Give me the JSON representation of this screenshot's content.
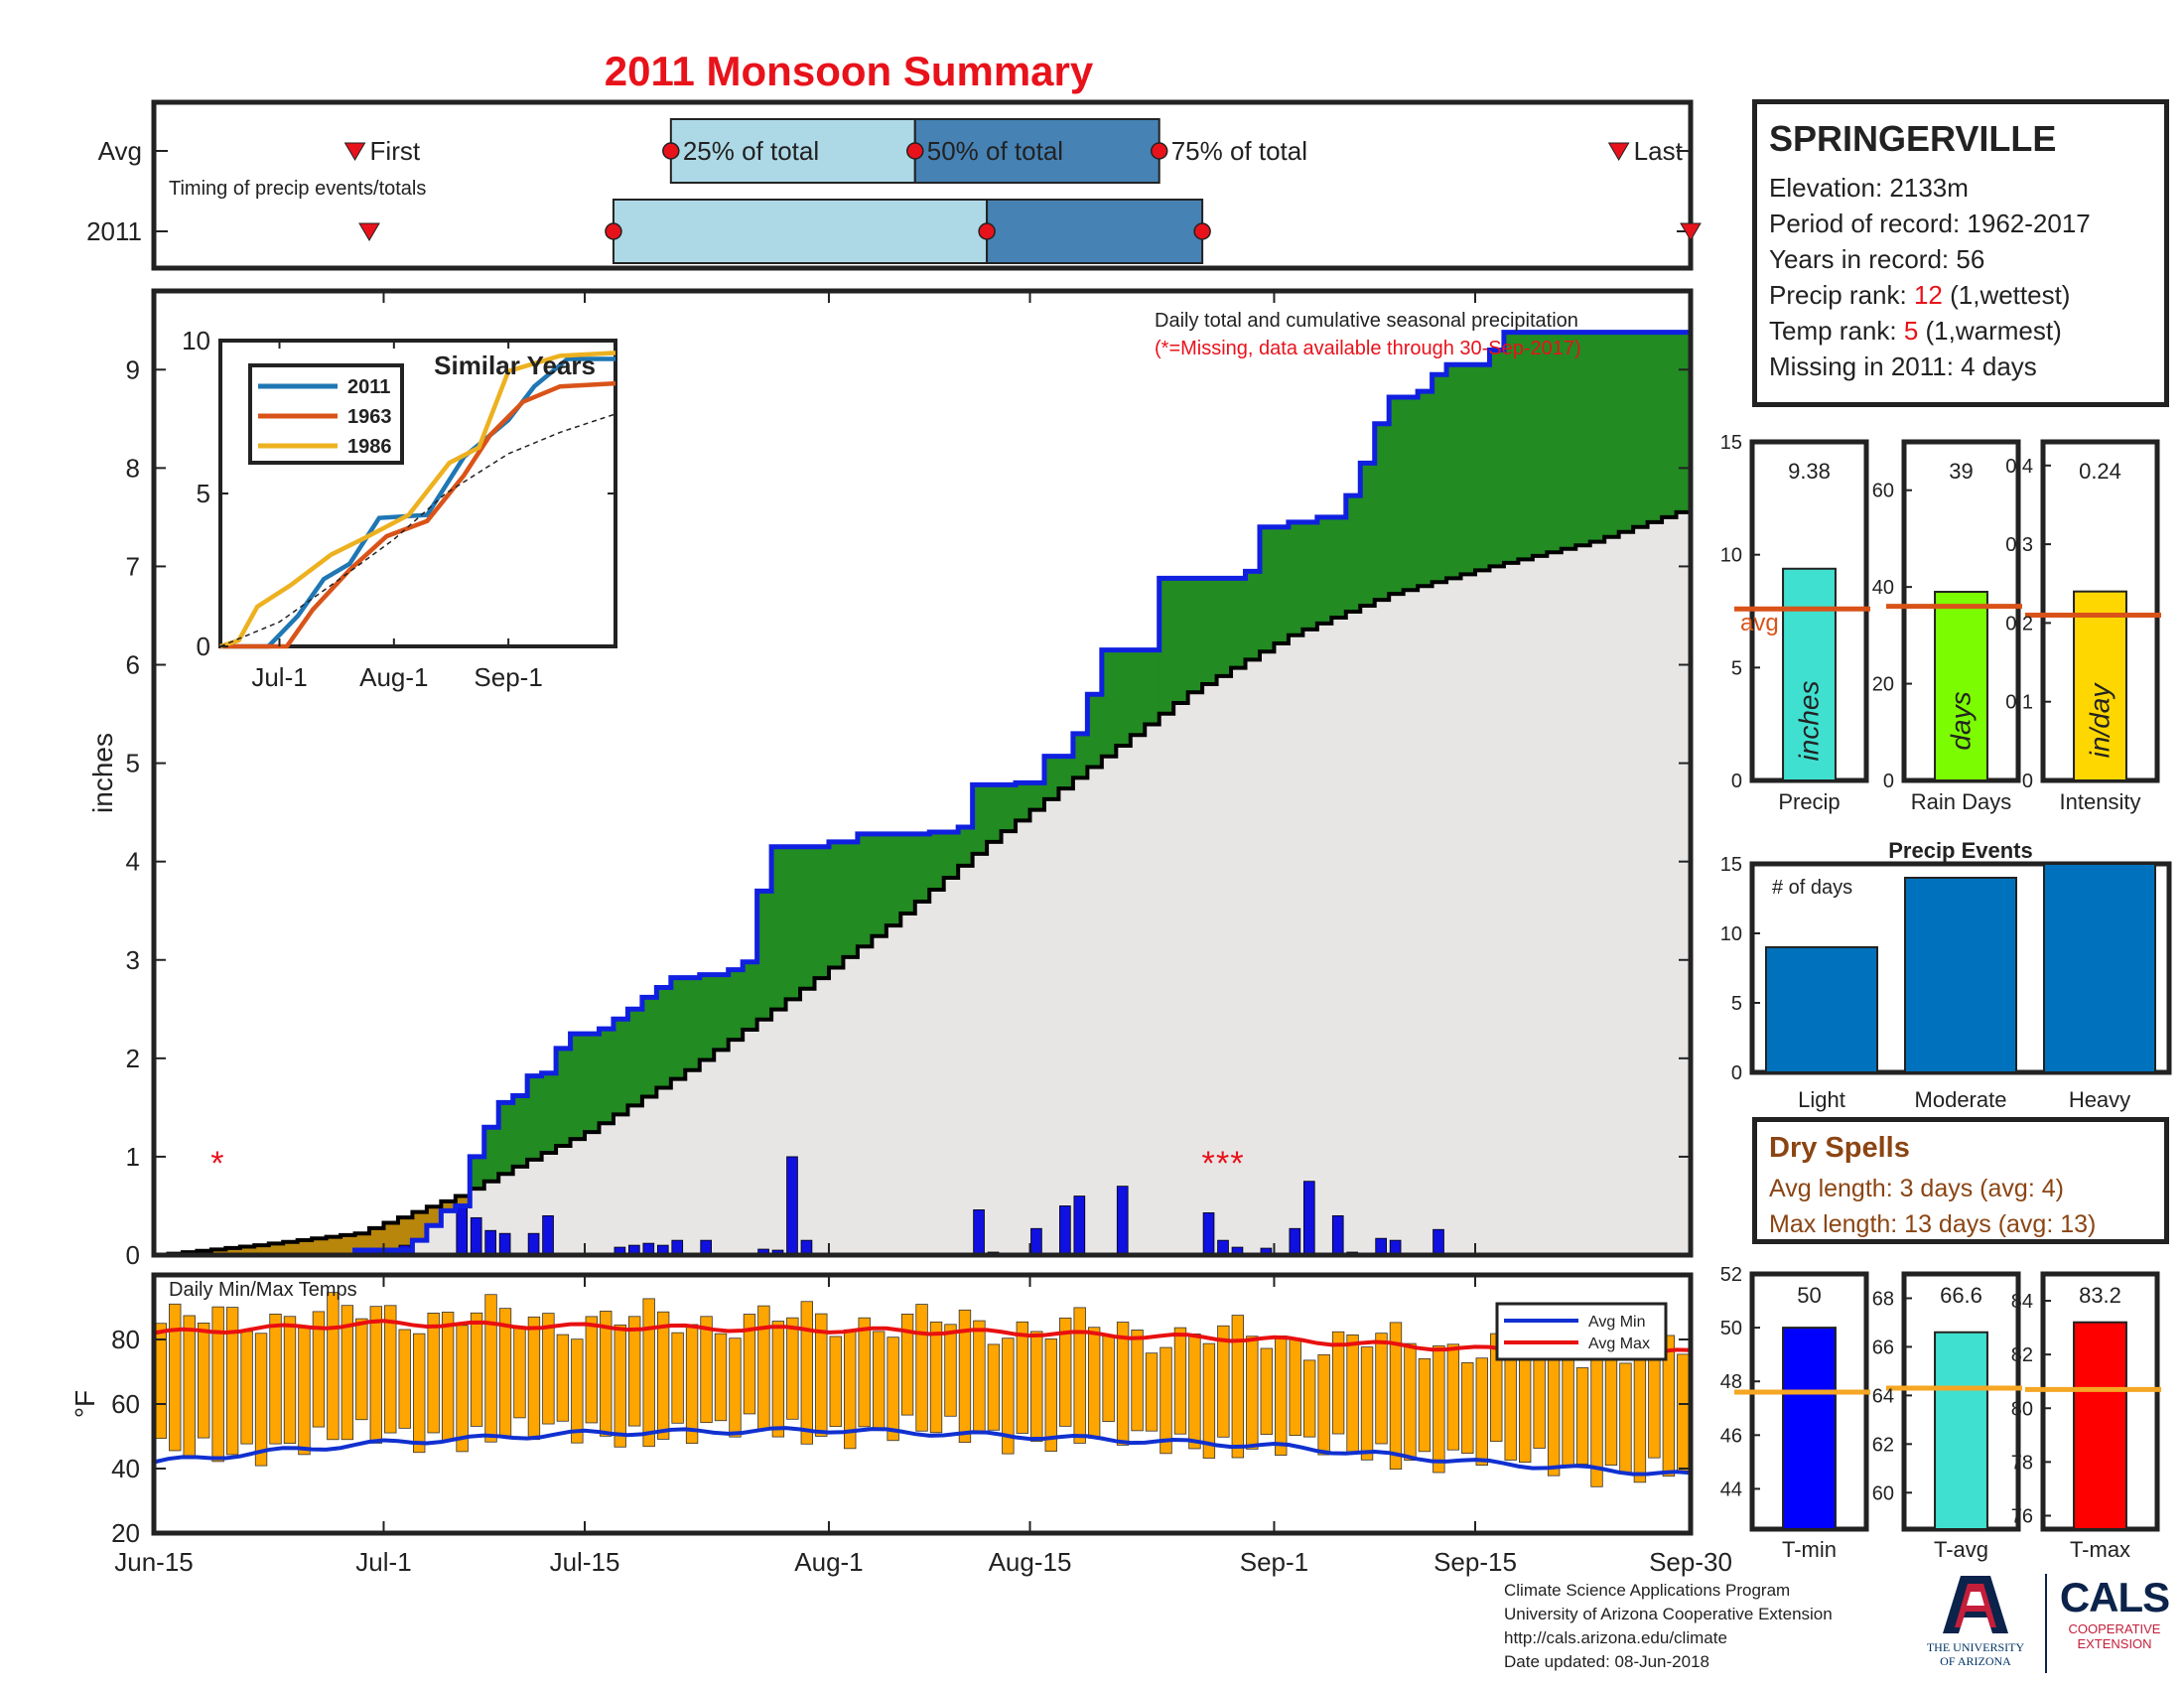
{
  "title": "2011 Monsoon Summary",
  "station": {
    "name": "SPRINGERVILLE",
    "elevation_label": "Elevation: 2133m",
    "period_label": "Period of record: 1962-2017",
    "years_label": "Years in record: 56",
    "precip_rank_prefix": "Precip rank: ",
    "precip_rank_value": "12",
    "precip_rank_suffix": " (1,wettest)",
    "temp_rank_prefix": "Temp rank: ",
    "temp_rank_value": "5",
    "temp_rank_suffix": " (1,warmest)",
    "missing_label": "Missing in 2011: 4 days"
  },
  "dry_spells": {
    "title": "Dry Spells",
    "avg_length": "Avg length: 3 days (avg: 4)",
    "max_length": "Max length: 13 days (avg: 13)"
  },
  "credits": {
    "line1": "Climate Science Applications Program",
    "line2": "University of Arizona Cooperative Extension",
    "line3": "http://cals.arizona.edu/climate",
    "line4": "Date updated: 08-Jun-2018"
  },
  "logos": {
    "ua_line1": "THE UNIVERSITY",
    "ua_line2": "OF ARIZONA",
    "cals_word": "CALS",
    "cals_sub1": "COOPERATIVE",
    "cals_sub2": "EXTENSION"
  },
  "colors": {
    "title_red": "#e8121b",
    "cumulative_2011": "#1020e0",
    "above_avg_fill": "#228b22",
    "below_avg_fill": "#b8860b",
    "avg_fill": "#e8e6e5",
    "daily_bar": "#1010e0",
    "temp_bar": "#ffa500",
    "avg_min_line": "#1030d0",
    "avg_max_line": "#e81010"
  },
  "chart_data": [
    {
      "id": "timing",
      "type": "timeline",
      "title": "Timing of precip events/totals",
      "rows": [
        "Avg",
        "2011"
      ],
      "labels": {
        "first": "First",
        "q25": "25% of total",
        "q50": "50% of total",
        "q75": "75% of total",
        "last": "Last"
      },
      "avg": {
        "first": "2011-06-29",
        "q25": "2011-07-21",
        "q50": "2011-08-07",
        "q75": "2011-08-24",
        "last": "2011-09-25"
      },
      "y2011": {
        "first": "2011-06-30",
        "q25": "2011-07-17",
        "q50": "2011-08-12",
        "q75": "2011-08-27",
        "last": "2011-09-30"
      }
    },
    {
      "id": "precip",
      "type": "area",
      "title": "Daily total and cumulative seasonal precipitation",
      "note": "(*=Missing, data available through 30-Sep-2017)",
      "ylabel": "inches",
      "ylim": [
        0,
        9.8
      ],
      "yticks": [
        0,
        1,
        2,
        3,
        4,
        5,
        6,
        7,
        8,
        9
      ],
      "xticks": [
        {
          "date": "2011-06-15",
          "label": "Jun-15"
        },
        {
          "date": "2011-07-01",
          "label": "Jul-1"
        },
        {
          "date": "2011-07-15",
          "label": "Jul-15"
        },
        {
          "date": "2011-08-01",
          "label": "Aug-1"
        },
        {
          "date": "2011-08-15",
          "label": "Aug-15"
        },
        {
          "date": "2011-09-01",
          "label": "Sep-1"
        },
        {
          "date": "2011-09-15",
          "label": "Sep-15"
        },
        {
          "date": "2011-09-30",
          "label": "Sep-30"
        }
      ],
      "cumulative_2011": [
        [
          "2011-06-15",
          0
        ],
        [
          "2011-06-28",
          0
        ],
        [
          "2011-06-29",
          0.05
        ],
        [
          "2011-07-03",
          0.15
        ],
        [
          "2011-07-04",
          0.3
        ],
        [
          "2011-07-05",
          0.45
        ],
        [
          "2011-07-06",
          0.5
        ],
        [
          "2011-07-07",
          1.0
        ],
        [
          "2011-07-08",
          1.3
        ],
        [
          "2011-07-09",
          1.55
        ],
        [
          "2011-07-10",
          1.62
        ],
        [
          "2011-07-11",
          1.82
        ],
        [
          "2011-07-12",
          1.85
        ],
        [
          "2011-07-13",
          2.1
        ],
        [
          "2011-07-14",
          2.25
        ],
        [
          "2011-07-16",
          2.3
        ],
        [
          "2011-07-17",
          2.4
        ],
        [
          "2011-07-18",
          2.5
        ],
        [
          "2011-07-19",
          2.62
        ],
        [
          "2011-07-20",
          2.72
        ],
        [
          "2011-07-21",
          2.82
        ],
        [
          "2011-07-23",
          2.85
        ],
        [
          "2011-07-25",
          2.9
        ],
        [
          "2011-07-26",
          2.98
        ],
        [
          "2011-07-27",
          3.7
        ],
        [
          "2011-07-28",
          4.15
        ],
        [
          "2011-08-01",
          4.2
        ],
        [
          "2011-08-03",
          4.28
        ],
        [
          "2011-08-08",
          4.3
        ],
        [
          "2011-08-10",
          4.35
        ],
        [
          "2011-08-11",
          4.78
        ],
        [
          "2011-08-14",
          4.8
        ],
        [
          "2011-08-15",
          4.8
        ],
        [
          "2011-08-16",
          5.07
        ],
        [
          "2011-08-18",
          5.3
        ],
        [
          "2011-08-19",
          5.7
        ],
        [
          "2011-08-20",
          6.15
        ],
        [
          "2011-08-24",
          6.88
        ],
        [
          "2011-08-30",
          6.95
        ],
        [
          "2011-08-31",
          7.4
        ],
        [
          "2011-09-02",
          7.45
        ],
        [
          "2011-09-04",
          7.5
        ],
        [
          "2011-09-06",
          7.72
        ],
        [
          "2011-09-07",
          8.05
        ],
        [
          "2011-09-08",
          8.45
        ],
        [
          "2011-09-09",
          8.72
        ],
        [
          "2011-09-11",
          8.78
        ],
        [
          "2011-09-12",
          8.95
        ],
        [
          "2011-09-13",
          9.05
        ],
        [
          "2011-09-16",
          9.2
        ],
        [
          "2011-09-17",
          9.38
        ],
        [
          "2011-09-30",
          9.38
        ]
      ],
      "average_cumulative": [
        [
          "2011-06-15",
          0
        ],
        [
          "2011-06-22",
          0.1
        ],
        [
          "2011-06-29",
          0.22
        ],
        [
          "2011-07-06",
          0.6
        ],
        [
          "2011-07-10",
          0.9
        ],
        [
          "2011-07-15",
          1.25
        ],
        [
          "2011-07-22",
          1.88
        ],
        [
          "2011-07-29",
          2.6
        ],
        [
          "2011-08-05",
          3.35
        ],
        [
          "2011-08-12",
          4.2
        ],
        [
          "2011-08-19",
          4.96
        ],
        [
          "2011-08-26",
          5.72
        ],
        [
          "2011-09-02",
          6.3
        ],
        [
          "2011-09-09",
          6.72
        ],
        [
          "2011-09-16",
          7.0
        ],
        [
          "2011-09-23",
          7.25
        ],
        [
          "2011-09-30",
          7.6
        ]
      ],
      "daily_precip": [
        [
          "2011-06-29",
          0.03
        ],
        [
          "2011-07-02",
          0.1
        ],
        [
          "2011-07-06",
          0.5
        ],
        [
          "2011-07-07",
          0.38
        ],
        [
          "2011-07-08",
          0.25
        ],
        [
          "2011-07-09",
          0.22
        ],
        [
          "2011-07-11",
          0.22
        ],
        [
          "2011-07-12",
          0.4
        ],
        [
          "2011-07-17",
          0.08
        ],
        [
          "2011-07-18",
          0.1
        ],
        [
          "2011-07-19",
          0.12
        ],
        [
          "2011-07-20",
          0.1
        ],
        [
          "2011-07-21",
          0.15
        ],
        [
          "2011-07-23",
          0.15
        ],
        [
          "2011-07-27",
          0.06
        ],
        [
          "2011-07-28",
          0.05
        ],
        [
          "2011-07-29",
          1.0
        ],
        [
          "2011-07-30",
          0.15
        ],
        [
          "2011-08-06",
          0.02
        ],
        [
          "2011-08-11",
          0.46
        ],
        [
          "2011-08-12",
          0.03
        ],
        [
          "2011-08-15",
          0.27
        ],
        [
          "2011-08-17",
          0.5
        ],
        [
          "2011-08-18",
          0.6
        ],
        [
          "2011-08-21",
          0.7
        ],
        [
          "2011-08-27",
          0.43
        ],
        [
          "2011-08-28",
          0.15
        ],
        [
          "2011-08-29",
          0.08
        ],
        [
          "2011-08-31",
          0.07
        ],
        [
          "2011-09-02",
          0.27
        ],
        [
          "2011-09-03",
          0.75
        ],
        [
          "2011-09-05",
          0.4
        ],
        [
          "2011-09-06",
          0.03
        ],
        [
          "2011-09-08",
          0.17
        ],
        [
          "2011-09-09",
          0.15
        ],
        [
          "2011-09-12",
          0.26
        ]
      ],
      "missing_days": [
        "2011-06-19",
        "2011-08-27",
        "2011-08-28",
        "2011-08-29"
      ],
      "missing_label": "*",
      "missing_y": 1.0
    },
    {
      "id": "similar",
      "type": "line",
      "title": "Similar Years",
      "ylim": [
        0,
        10
      ],
      "yticks": [
        0,
        5,
        10
      ],
      "xticks": [
        {
          "date": "2011-07-01",
          "label": "Jul-1"
        },
        {
          "date": "2011-08-01",
          "label": "Aug-1"
        },
        {
          "date": "2011-09-01",
          "label": "Sep-1"
        }
      ],
      "series": [
        {
          "name": "2011",
          "color": "#1f77b4",
          "values": [
            [
              "2011-06-15",
              0
            ],
            [
              "2011-06-28",
              0
            ],
            [
              "2011-07-06",
              1.0
            ],
            [
              "2011-07-13",
              2.2
            ],
            [
              "2011-07-20",
              2.7
            ],
            [
              "2011-07-28",
              4.2
            ],
            [
              "2011-08-10",
              4.3
            ],
            [
              "2011-08-20",
              6.2
            ],
            [
              "2011-09-01",
              7.4
            ],
            [
              "2011-09-08",
              8.5
            ],
            [
              "2011-09-17",
              9.4
            ],
            [
              "2011-09-30",
              9.4
            ]
          ]
        },
        {
          "name": "1963",
          "color": "#d95319",
          "values": [
            [
              "2011-06-15",
              0
            ],
            [
              "2011-07-03",
              0
            ],
            [
              "2011-07-10",
              1.2
            ],
            [
              "2011-07-20",
              2.5
            ],
            [
              "2011-07-30",
              3.6
            ],
            [
              "2011-08-10",
              4.1
            ],
            [
              "2011-08-20",
              5.6
            ],
            [
              "2011-08-27",
              6.9
            ],
            [
              "2011-09-05",
              8.0
            ],
            [
              "2011-09-15",
              8.5
            ],
            [
              "2011-09-30",
              8.6
            ]
          ]
        },
        {
          "name": "1986",
          "color": "#edb120",
          "values": [
            [
              "2011-06-15",
              0
            ],
            [
              "2011-06-20",
              0.2
            ],
            [
              "2011-06-25",
              1.3
            ],
            [
              "2011-07-04",
              2.0
            ],
            [
              "2011-07-15",
              3.0
            ],
            [
              "2011-07-25",
              3.6
            ],
            [
              "2011-08-05",
              4.3
            ],
            [
              "2011-08-16",
              6.0
            ],
            [
              "2011-08-24",
              6.5
            ],
            [
              "2011-09-01",
              9.0
            ],
            [
              "2011-09-15",
              9.5
            ],
            [
              "2011-09-30",
              9.6
            ]
          ]
        },
        {
          "name": "",
          "color": "#222222",
          "dashed": true,
          "values": [
            [
              "2011-06-15",
              0
            ],
            [
              "2011-07-01",
              0.8
            ],
            [
              "2011-07-15",
              2.0
            ],
            [
              "2011-08-01",
              3.5
            ],
            [
              "2011-08-15",
              5.0
            ],
            [
              "2011-09-01",
              6.3
            ],
            [
              "2011-09-15",
              7.0
            ],
            [
              "2011-09-30",
              7.6
            ]
          ]
        }
      ]
    },
    {
      "id": "temps",
      "type": "bar",
      "title": "Daily Min/Max Temps",
      "ylabel": "°F",
      "ylim": [
        20,
        100
      ],
      "yticks": [
        20,
        40,
        60,
        80
      ],
      "legend": [
        "Avg Min",
        "Avg Max"
      ],
      "legend_position": "top-right",
      "avg_max": [
        [
          "2011-06-15",
          82
        ],
        [
          "2011-07-01",
          85
        ],
        [
          "2011-07-15",
          84
        ],
        [
          "2011-08-01",
          83
        ],
        [
          "2011-08-15",
          82
        ],
        [
          "2011-09-01",
          80
        ],
        [
          "2011-09-15",
          77
        ],
        [
          "2011-09-30",
          76
        ]
      ],
      "avg_min": [
        [
          "2011-06-15",
          42
        ],
        [
          "2011-06-25",
          46
        ],
        [
          "2011-07-01",
          48
        ],
        [
          "2011-07-15",
          51
        ],
        [
          "2011-08-01",
          52
        ],
        [
          "2011-08-15",
          50
        ],
        [
          "2011-09-01",
          47
        ],
        [
          "2011-09-15",
          42
        ],
        [
          "2011-09-30",
          38
        ]
      ],
      "daily_max_keypoints": [
        [
          "2011-06-15",
          85
        ],
        [
          "2011-06-25",
          88
        ],
        [
          "2011-07-01",
          88
        ],
        [
          "2011-07-15",
          86
        ],
        [
          "2011-08-01",
          86
        ],
        [
          "2011-08-15",
          84
        ],
        [
          "2011-09-01",
          80
        ],
        [
          "2011-09-15",
          78
        ],
        [
          "2011-09-30",
          76
        ]
      ],
      "daily_min_keypoints": [
        [
          "2011-06-15",
          44
        ],
        [
          "2011-06-25",
          48
        ],
        [
          "2011-07-01",
          50
        ],
        [
          "2011-07-15",
          51
        ],
        [
          "2011-08-01",
          52
        ],
        [
          "2011-08-15",
          50
        ],
        [
          "2011-09-01",
          47
        ],
        [
          "2011-09-15",
          43
        ],
        [
          "2011-09-30",
          38
        ]
      ]
    },
    {
      "id": "season_stats",
      "type": "bar",
      "panels": [
        {
          "key": "precip",
          "category": "Precip",
          "unit": "inches",
          "value": 9.38,
          "label": "9.38",
          "avg": 7.6,
          "avg_label": "avg",
          "ylim": [
            0,
            15
          ],
          "yticks": [
            0,
            5,
            10,
            15
          ],
          "color": "#40e0d0"
        },
        {
          "key": "raindays",
          "category": "Rain Days",
          "unit": "days",
          "value": 39,
          "label": "39",
          "avg": 36,
          "ylim": [
            0,
            70
          ],
          "yticks": [
            0,
            20,
            40,
            60
          ],
          "color": "#7cfc00"
        },
        {
          "key": "intensity",
          "category": "Intensity",
          "unit": "in/day",
          "value": 0.24,
          "label": "0.24",
          "avg": 0.21,
          "ylim": [
            0,
            0.43
          ],
          "yticks": [
            0,
            0.1,
            0.2,
            0.3,
            0.4
          ],
          "color": "#ffd700"
        }
      ]
    },
    {
      "id": "precip_events",
      "type": "bar",
      "title": "Precip Events",
      "ylabel": "# of days",
      "categories": [
        "Light",
        "Moderate",
        "Heavy"
      ],
      "values": [
        9,
        14,
        15
      ],
      "ylim": [
        0,
        15
      ],
      "yticks": [
        0,
        5,
        10,
        15
      ]
    },
    {
      "id": "temp_stats",
      "type": "bar",
      "panels": [
        {
          "key": "tmin",
          "category": "T-min",
          "value": 50,
          "label": "50",
          "avg": 47.6,
          "ylim": [
            42.5,
            52
          ],
          "yticks": [
            44,
            46,
            48,
            50,
            52
          ],
          "color": "#0000ff"
        },
        {
          "key": "tavg",
          "category": "T-avg",
          "value": 66.6,
          "label": "66.6",
          "avg": 64.3,
          "ylim": [
            58.5,
            69
          ],
          "yticks": [
            60,
            62,
            64,
            66,
            68
          ],
          "color": "#40e0d0"
        },
        {
          "key": "tmax",
          "category": "T-max",
          "value": 83.2,
          "label": "83.2",
          "avg": 80.7,
          "ylim": [
            75.5,
            85
          ],
          "yticks": [
            76,
            78,
            80,
            82,
            84
          ],
          "color": "#ff0000"
        }
      ]
    }
  ]
}
